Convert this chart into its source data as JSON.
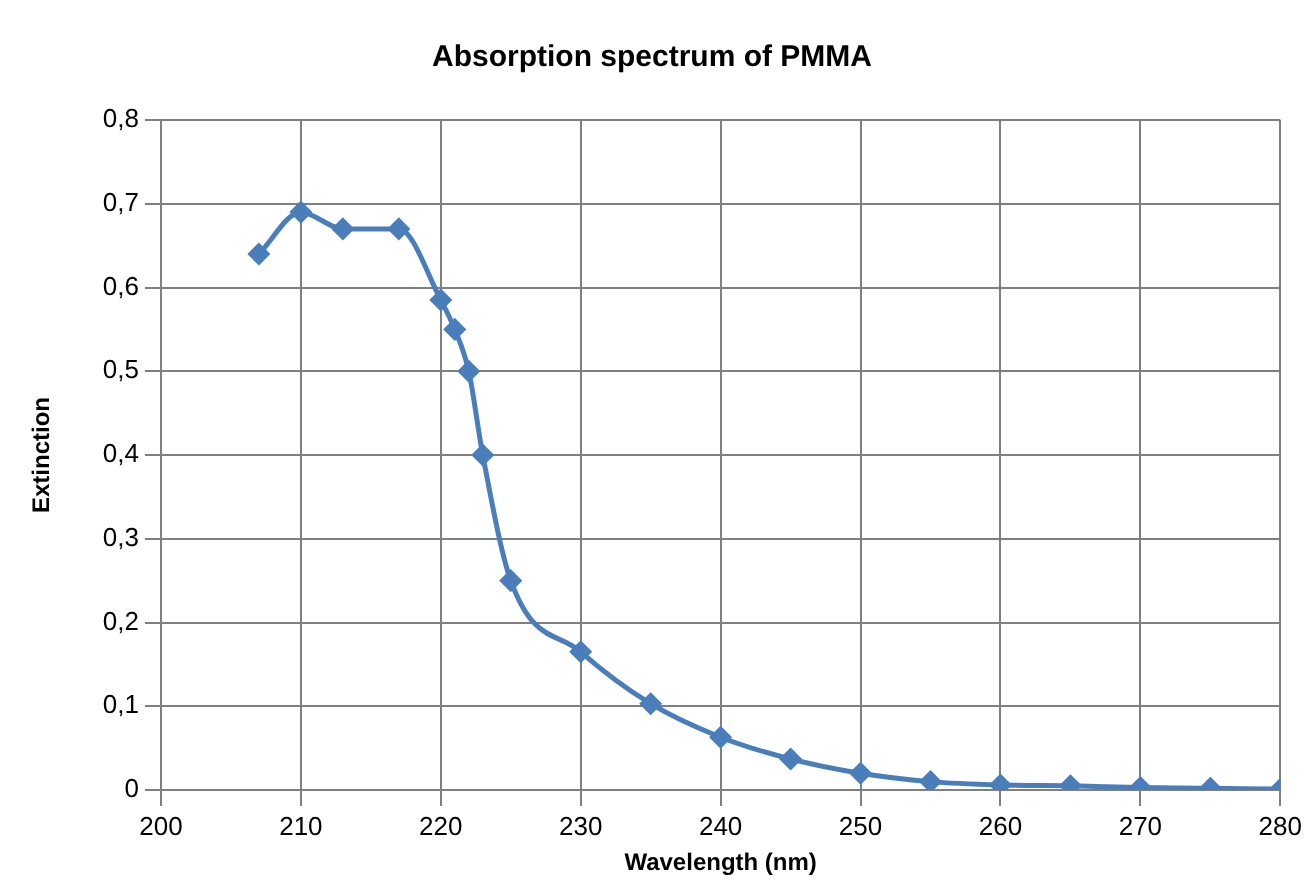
{
  "chart_data": {
    "type": "line",
    "title": "Absorption spectrum of PMMA",
    "xlabel": "Wavelength (nm)",
    "ylabel": "Extinction",
    "x": [
      207,
      210,
      213,
      217,
      220,
      221,
      222,
      223,
      225,
      230,
      235,
      240,
      245,
      250,
      255,
      260,
      265,
      270,
      275,
      280
    ],
    "series": [
      {
        "color": "#4a7ebb",
        "values": [
          0.64,
          0.69,
          0.67,
          0.67,
          0.585,
          0.55,
          0.5,
          0.4,
          0.25,
          0.165,
          0.103,
          0.063,
          0.037,
          0.02,
          0.01,
          0.006,
          0.005,
          0.003,
          0.002,
          0.001
        ]
      }
    ],
    "xlim": [
      200,
      280
    ],
    "xticks": [
      200,
      210,
      220,
      230,
      240,
      250,
      260,
      270,
      280
    ],
    "ylim": [
      0,
      0.8
    ],
    "yticks": [
      {
        "value": 0,
        "label": "0"
      },
      {
        "value": 0.1,
        "label": "0,1"
      },
      {
        "value": 0.2,
        "label": "0,2"
      },
      {
        "value": 0.3,
        "label": "0,3"
      },
      {
        "value": 0.4,
        "label": "0,4"
      },
      {
        "value": 0.5,
        "label": "0,5"
      },
      {
        "value": 0.6,
        "label": "0,6"
      },
      {
        "value": 0.7,
        "label": "0,7"
      },
      {
        "value": 0.8,
        "label": "0,8"
      }
    ],
    "grid": true,
    "legend": false,
    "marker": "diamond",
    "line_style": "solid"
  }
}
